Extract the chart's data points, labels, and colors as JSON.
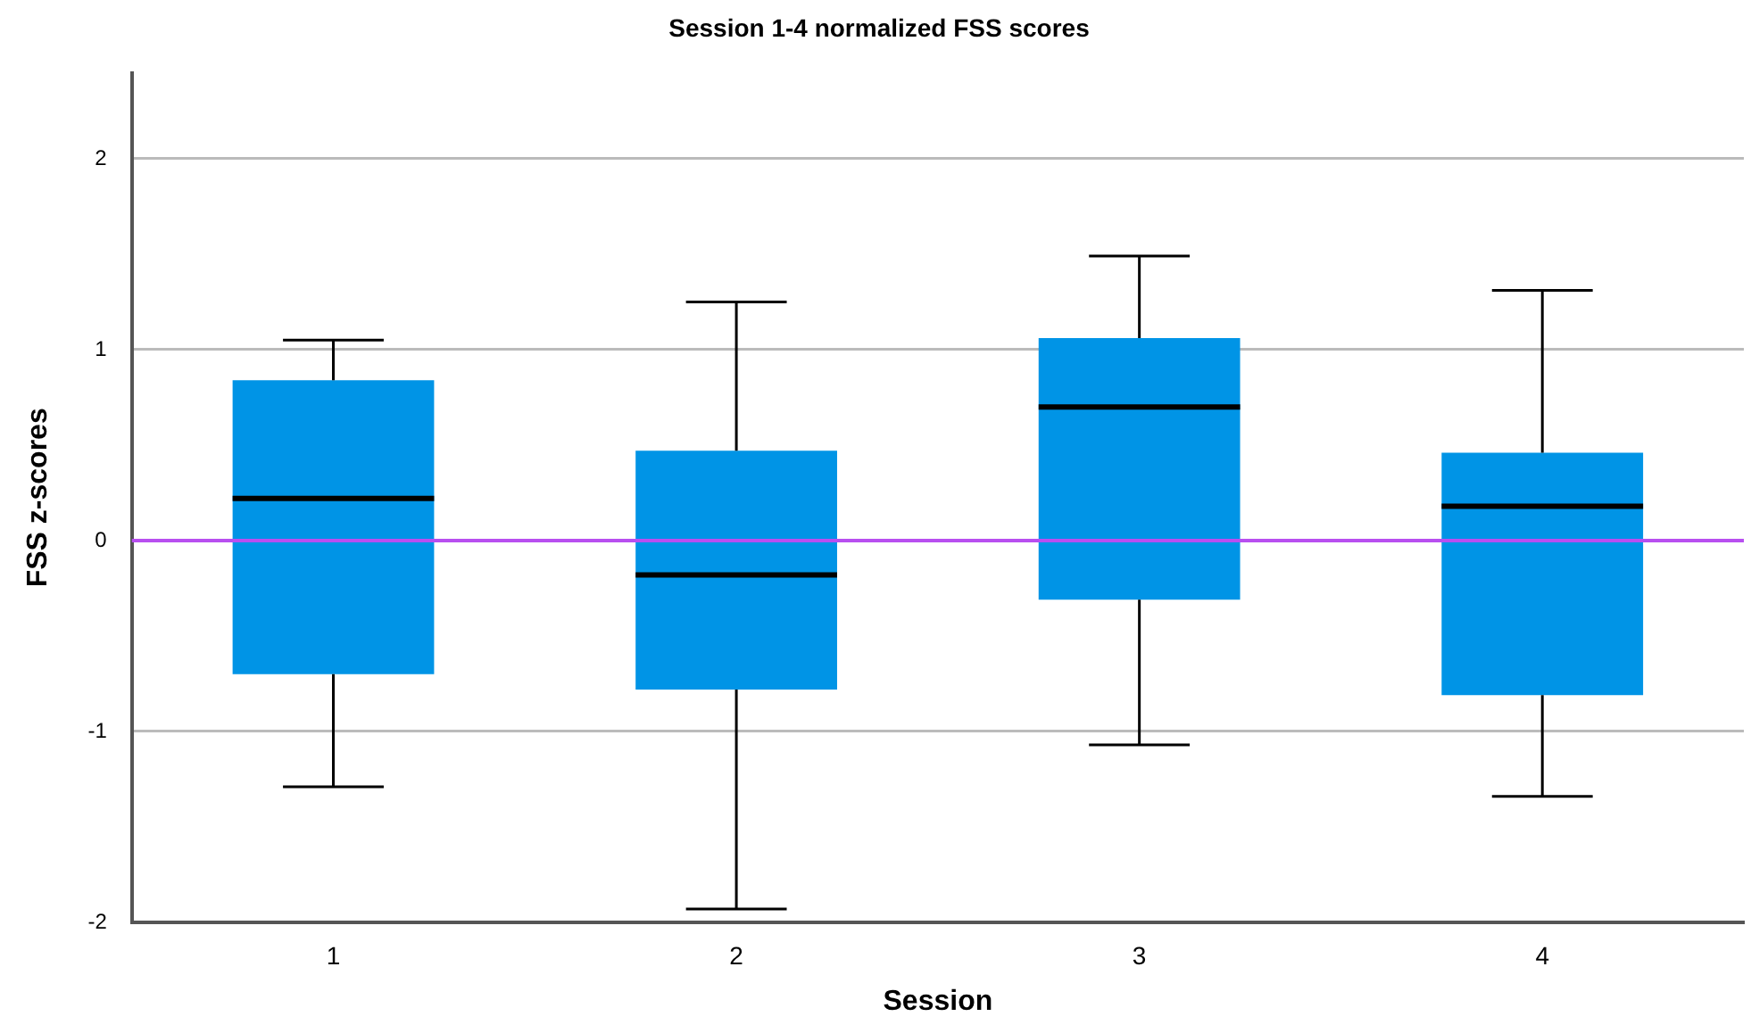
{
  "chart_data": {
    "type": "box",
    "title": "Session 1-4 normalized FSS scores",
    "xlabel": "Session",
    "ylabel": "FSS z-scores",
    "categories": [
      "1",
      "2",
      "3",
      "4"
    ],
    "color": "#0094e6",
    "boxes": [
      {
        "low": -1.29,
        "q1": -0.7,
        "median": 0.22,
        "q3": 0.84,
        "high": 1.05
      },
      {
        "low": -1.93,
        "q1": -0.78,
        "median": -0.18,
        "q3": 0.47,
        "high": 1.25
      },
      {
        "low": -1.07,
        "q1": -0.31,
        "median": 0.7,
        "q3": 1.06,
        "high": 1.49
      },
      {
        "low": -1.34,
        "q1": -0.81,
        "median": 0.18,
        "q3": 0.46,
        "high": 1.31
      }
    ],
    "ylim": [
      -2,
      2.45
    ],
    "yticks": [
      -2,
      -1,
      0,
      1,
      2
    ],
    "grid": "y",
    "ref_lines": [
      {
        "axis": "y",
        "value": 0,
        "color": "#b84ff0"
      }
    ]
  }
}
